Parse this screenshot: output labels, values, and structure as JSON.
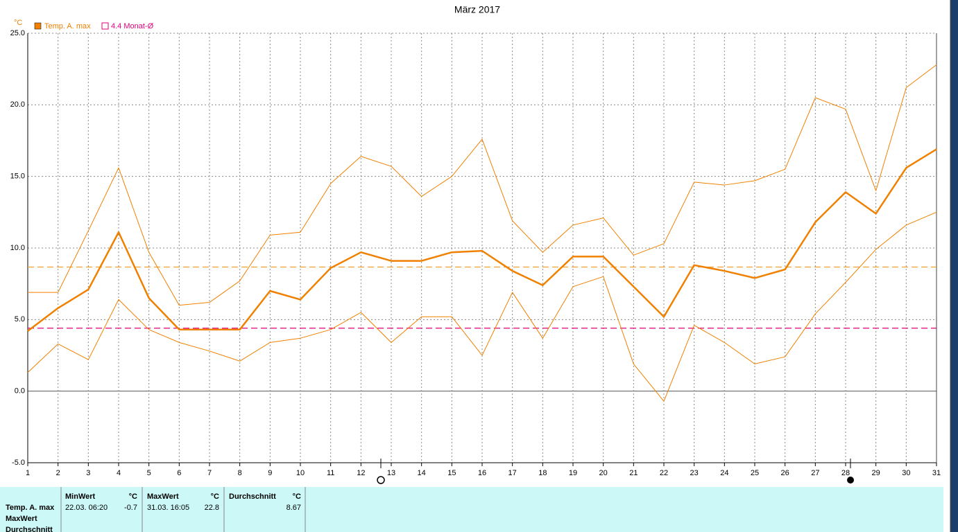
{
  "chart_data": {
    "type": "line",
    "title": "März 2017",
    "y_unit": "°C",
    "x": [
      1,
      2,
      3,
      4,
      5,
      6,
      7,
      8,
      9,
      10,
      11,
      12,
      13,
      14,
      15,
      16,
      17,
      18,
      19,
      20,
      21,
      22,
      23,
      24,
      25,
      26,
      27,
      28,
      29,
      30,
      31
    ],
    "xlim": [
      1,
      31
    ],
    "xticks": [
      1,
      2,
      3,
      4,
      5,
      6,
      7,
      8,
      9,
      10,
      11,
      12,
      13,
      14,
      15,
      16,
      17,
      18,
      19,
      20,
      21,
      22,
      23,
      24,
      25,
      26,
      27,
      28,
      29,
      30,
      31
    ],
    "ylim": [
      -5,
      25
    ],
    "yticks": [
      {
        "value": -5,
        "label": "-5.0"
      },
      {
        "value": 0,
        "label": "0.0"
      },
      {
        "value": 5,
        "label": "5.0"
      },
      {
        "value": 10,
        "label": "10.0"
      },
      {
        "value": 15,
        "label": "15.0"
      },
      {
        "value": 20,
        "label": "20.0"
      },
      {
        "value": 25,
        "label": "25.0"
      }
    ],
    "grid": true,
    "series": [
      {
        "name": "Temp. A. max",
        "color": "#f08000",
        "values": [
          4.2,
          5.8,
          7.1,
          11.1,
          6.5,
          4.3,
          4.3,
          4.3,
          7.0,
          6.4,
          8.6,
          9.7,
          9.1,
          9.1,
          9.7,
          9.8,
          8.4,
          7.4,
          9.4,
          9.4,
          7.3,
          5.2,
          8.8,
          8.4,
          7.9,
          8.5,
          11.8,
          13.9,
          12.4,
          15.6,
          16.9
        ]
      },
      {
        "color": "#f08000",
        "values": [
          6.9,
          6.9,
          11.2,
          15.6,
          9.7,
          6.0,
          6.2,
          7.7,
          10.9,
          11.1,
          14.5,
          16.4,
          15.7,
          13.6,
          15.0,
          17.6,
          11.9,
          9.7,
          11.6,
          12.1,
          9.5,
          10.3,
          14.6,
          14.4,
          14.7,
          15.5,
          20.5,
          19.7,
          14.0,
          21.2,
          22.8
        ]
      },
      {
        "color": "#f08000",
        "values": [
          1.3,
          3.3,
          2.2,
          6.4,
          4.3,
          3.4,
          2.8,
          2.1,
          3.4,
          3.7,
          4.3,
          5.5,
          3.4,
          5.2,
          5.2,
          2.5,
          6.9,
          3.7,
          7.3,
          8.0,
          1.9,
          -0.7,
          4.6,
          3.4,
          1.9,
          2.4,
          5.4,
          7.6,
          9.9,
          11.6,
          12.5
        ]
      }
    ],
    "reference_lines": [
      {
        "label": "4.4 Monat-Ø",
        "value": 4.4,
        "color": "#e0007a"
      },
      {
        "value": 8.67,
        "color": "#f0a030"
      }
    ]
  },
  "table": {
    "row_labels": [
      "Temp. A. max",
      "MaxWert",
      "Durchschnitt"
    ],
    "columns": [
      {
        "header": "MinWert",
        "unit": "°C",
        "time": "22.03.  06:20",
        "value": "-0.7"
      },
      {
        "header": "MaxWert",
        "unit": "°C",
        "time": "31.03.  16:05",
        "value": "22.8"
      },
      {
        "header": "Durchschnitt",
        "unit": "°C",
        "value": "8.67"
      }
    ]
  }
}
